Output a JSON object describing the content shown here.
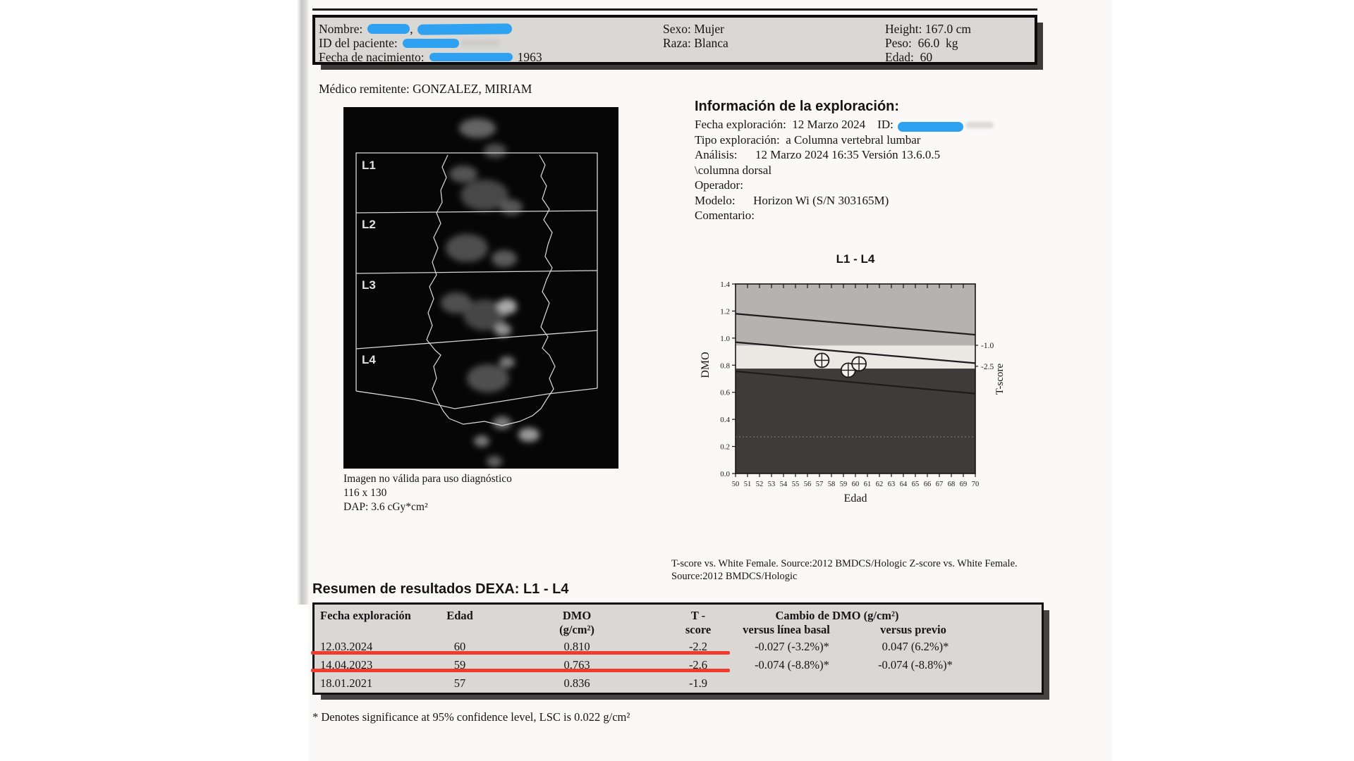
{
  "colors": {
    "redaction_blue": "#2fa1f1",
    "annotation_red": "#f23b2e"
  },
  "patient_box": {
    "name_label": "Nombre:",
    "name_separator": ",",
    "id_label": "ID del paciente:",
    "dob_label": "Fecha de nacimiento:",
    "dob_year": "1963",
    "sexo": "Sexo: Mujer",
    "raza": "Raza: Blanca",
    "height": "Height: 167.0 cm",
    "peso": "Peso:  66.0  kg",
    "edad": "Edad:  60"
  },
  "referring": "Médico remitente: GONZALEZ, MIRIAM",
  "scan_image": {
    "labels": [
      "L1",
      "L2",
      "L3",
      "L4"
    ],
    "caption": [
      "Imagen no válida para uso diagnóstico",
      "116 x 130",
      "DAP: 3.6 cGy*cm²"
    ]
  },
  "exam_info": {
    "heading": "Información de la exploración:",
    "lines": [
      {
        "text": "Fecha exploración:  12 Marzo 2024    ID:",
        "redacted": true
      },
      {
        "text": "Tipo exploración:  a Columna vertebral lumbar"
      },
      {
        "text": "Análisis:      12 Marzo 2024 16:35 Versión 13.6.0.5"
      },
      {
        "text": "\\columna dorsal"
      },
      {
        "text": "Operador:"
      },
      {
        "text": "Modelo:      Horizon Wi (S/N 303165M)"
      },
      {
        "text": "Comentario:"
      }
    ]
  },
  "chart_data": {
    "type": "scatter",
    "title": "L1 - L4",
    "xlabel": "Edad",
    "ylabel": "DMO",
    "y2label": "T-score",
    "xlim": [
      50,
      70
    ],
    "ylim": [
      0.0,
      1.4
    ],
    "x_ticks": [
      50,
      51,
      52,
      53,
      54,
      55,
      56,
      57,
      58,
      59,
      60,
      61,
      62,
      63,
      64,
      65,
      66,
      67,
      68,
      69,
      70
    ],
    "y_ticks": [
      0.0,
      0.2,
      0.4,
      0.6,
      0.8,
      1.0,
      1.2,
      1.4
    ],
    "y2_ticks": [
      {
        "label": "-1.0",
        "dmo": 0.947
      },
      {
        "label": "-2.5",
        "dmo": 0.792
      }
    ],
    "points": [
      {
        "edad": 57.2,
        "dmo": 0.836
      },
      {
        "edad": 59.4,
        "dmo": 0.763
      },
      {
        "edad": 60.3,
        "dmo": 0.81
      }
    ],
    "bands": [
      {
        "from": 0.945,
        "to": 1.4,
        "color": "#b5b3b0"
      },
      {
        "from": 0.775,
        "to": 0.945,
        "color": "#eae8e2"
      },
      {
        "from": 0.0,
        "to": 0.775,
        "color": "#3e3c39"
      }
    ],
    "reference_lines": [
      {
        "y_start": 1.18,
        "y_end": 1.025
      },
      {
        "y_start": 0.97,
        "y_end": 0.815
      },
      {
        "y_start": 0.755,
        "y_end": 0.59
      }
    ],
    "grid": false,
    "legend": false
  },
  "source_note": "T-score vs. White Female. Source:2012 BMDCS/Hologic Z-score vs. White Female. Source:2012 BMDCS/Hologic",
  "summary": {
    "heading": "Resumen de resultados DEXA: L1 - L4",
    "columns": {
      "fecha": "Fecha exploración",
      "edad": "Edad",
      "dmo1": "DMO",
      "dmo2": "(g/cm²)",
      "t1": "T -",
      "t2": "score",
      "cambio": "Cambio de DMO (g/cm²)",
      "basal": "versus línea basal",
      "previo": "versus previo"
    },
    "rows": [
      {
        "fecha": "12.03.2024",
        "edad": "60",
        "dmo": "0.810",
        "t": "-2.2",
        "basal": "-0.027 (-3.2%)*",
        "previo": "0.047 (6.2%)*"
      },
      {
        "fecha": "14.04.2023",
        "edad": "59",
        "dmo": "0.763",
        "t": "-2.6",
        "basal": "-0.074 (-8.8%)*",
        "previo": "-0.074 (-8.8%)*"
      },
      {
        "fecha": "18.01.2021",
        "edad": "57",
        "dmo": "0.836",
        "t": "-1.9",
        "basal": "",
        "previo": ""
      }
    ]
  },
  "footnote": "* Denotes significance at 95% confidence level, LSC is 0.022 g/cm²"
}
